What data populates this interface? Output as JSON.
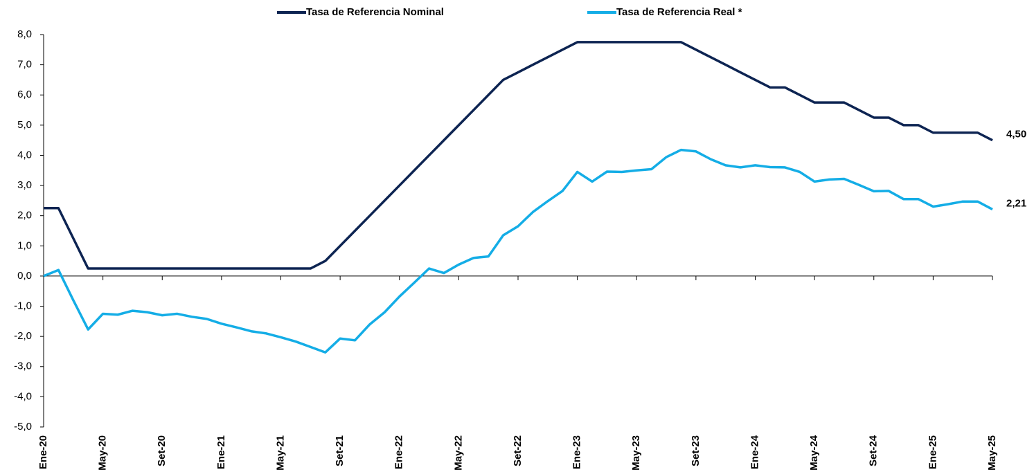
{
  "chart_data": {
    "type": "line",
    "categories": [
      "Ene-20",
      null,
      null,
      null,
      "May-20",
      null,
      null,
      null,
      "Set-20",
      null,
      null,
      null,
      "Ene-21",
      null,
      null,
      null,
      "May-21",
      null,
      null,
      null,
      "Set-21",
      null,
      null,
      null,
      "Ene-22",
      null,
      null,
      null,
      "May-22",
      null,
      null,
      null,
      "Set-22",
      null,
      null,
      null,
      "Ene-23",
      null,
      null,
      null,
      "May-23",
      null,
      null,
      null,
      "Set-23",
      null,
      null,
      null,
      "Ene-24",
      null,
      null,
      null,
      "May-24",
      null,
      null,
      null,
      "Set-24",
      null,
      null,
      null,
      "Ene-25",
      null,
      null,
      null,
      "May-25"
    ],
    "series": [
      {
        "name": "Tasa de Referencia Nominal",
        "color": "#0d2452",
        "values": [
          2.25,
          2.25,
          1.25,
          0.25,
          0.25,
          0.25,
          0.25,
          0.25,
          0.25,
          0.25,
          0.25,
          0.25,
          0.25,
          0.25,
          0.25,
          0.25,
          0.25,
          0.25,
          0.25,
          0.5,
          1.0,
          1.5,
          2.0,
          2.5,
          3.0,
          3.5,
          4.0,
          4.5,
          5.0,
          5.5,
          6.0,
          6.5,
          6.75,
          7.0,
          7.25,
          7.5,
          7.75,
          7.75,
          7.75,
          7.75,
          7.75,
          7.75,
          7.75,
          7.75,
          7.5,
          7.25,
          7.0,
          6.75,
          6.5,
          6.25,
          6.25,
          6.0,
          5.75,
          5.75,
          5.75,
          5.5,
          5.25,
          5.25,
          5.0,
          5.0,
          4.75,
          4.75,
          4.75,
          4.75,
          4.5
        ],
        "value_labels": [
          null,
          null,
          null,
          null,
          null,
          null,
          null,
          null,
          null,
          null,
          null,
          null,
          null,
          null,
          null,
          null,
          null,
          null,
          null,
          null,
          null,
          null,
          null,
          null,
          null,
          null,
          null,
          null,
          null,
          null,
          null,
          null,
          null,
          null,
          null,
          null,
          null,
          null,
          null,
          null,
          null,
          null,
          null,
          null,
          null,
          null,
          null,
          null,
          null,
          null,
          null,
          null,
          null,
          null,
          null,
          null,
          null,
          null,
          null,
          null,
          null,
          null,
          null,
          null,
          "4,50"
        ]
      },
      {
        "name": "Tasa de Referencia Real *",
        "color": "#14ade6",
        "values": [
          0.0,
          0.2,
          -0.8,
          -1.77,
          -1.25,
          -1.28,
          -1.15,
          -1.2,
          -1.3,
          -1.25,
          -1.35,
          -1.42,
          -1.58,
          -1.7,
          -1.83,
          -1.9,
          -2.03,
          -2.17,
          -2.35,
          -2.53,
          -2.07,
          -2.13,
          -1.6,
          -1.2,
          -0.68,
          -0.22,
          0.25,
          0.1,
          0.38,
          0.6,
          0.65,
          1.35,
          1.65,
          2.12,
          2.48,
          2.82,
          3.45,
          3.13,
          3.46,
          3.45,
          3.5,
          3.54,
          3.94,
          4.18,
          4.13,
          3.87,
          3.67,
          3.6,
          3.67,
          3.61,
          3.6,
          3.45,
          3.13,
          3.2,
          3.22,
          3.02,
          2.81,
          2.82,
          2.55,
          2.55,
          2.3,
          2.38,
          2.47,
          2.47,
          2.21
        ],
        "value_labels": [
          null,
          null,
          null,
          null,
          null,
          null,
          null,
          null,
          null,
          null,
          null,
          null,
          null,
          null,
          null,
          null,
          null,
          null,
          null,
          null,
          null,
          null,
          null,
          null,
          null,
          null,
          null,
          null,
          null,
          null,
          null,
          null,
          null,
          null,
          null,
          null,
          null,
          null,
          null,
          null,
          null,
          null,
          null,
          null,
          null,
          null,
          null,
          null,
          null,
          null,
          null,
          null,
          null,
          null,
          null,
          null,
          null,
          null,
          null,
          null,
          null,
          null,
          null,
          null,
          "2,21"
        ]
      }
    ],
    "ylim": [
      -5,
      8
    ],
    "yticks": [
      {
        "value": -5,
        "label": "-5,0"
      },
      {
        "value": -4,
        "label": "-4,0"
      },
      {
        "value": -3,
        "label": "-3,0"
      },
      {
        "value": -2,
        "label": "-2,0"
      },
      {
        "value": -1,
        "label": "-1,0"
      },
      {
        "value": 0,
        "label": "0,0"
      },
      {
        "value": 1,
        "label": "1,0"
      },
      {
        "value": 2,
        "label": "2,0"
      },
      {
        "value": 3,
        "label": "3,0"
      },
      {
        "value": 4,
        "label": "4,0"
      },
      {
        "value": 5,
        "label": "5,0"
      },
      {
        "value": 6,
        "label": "6,0"
      },
      {
        "value": 7,
        "label": "7,0"
      },
      {
        "value": 8,
        "label": "8,0"
      }
    ],
    "legend": "top"
  }
}
